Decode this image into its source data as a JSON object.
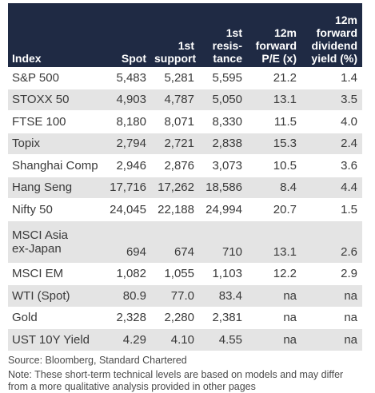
{
  "headers": {
    "index": [
      "Index"
    ],
    "spot": [
      "Spot"
    ],
    "support": [
      "1st",
      "support"
    ],
    "resistance": [
      "1st",
      "resis-",
      "tance"
    ],
    "pe": [
      "12m",
      "forward",
      "P/E (x)"
    ],
    "dividend": [
      "12m",
      "forward",
      "dividend",
      "yield (%)"
    ]
  },
  "rows": [
    {
      "index": "S&P 500",
      "spot": "5,483",
      "support": "5,281",
      "resistance": "5,595",
      "pe": "21.2",
      "dividend": "1.4"
    },
    {
      "index": "STOXX 50",
      "spot": "4,903",
      "support": "4,787",
      "resistance": "5,050",
      "pe": "13.1",
      "dividend": "3.5"
    },
    {
      "index": "FTSE 100",
      "spot": "8,180",
      "support": "8,071",
      "resistance": "8,330",
      "pe": "11.5",
      "dividend": "4.0"
    },
    {
      "index": "Topix",
      "spot": "2,794",
      "support": "2,721",
      "resistance": "2,838",
      "pe": "15.3",
      "dividend": "2.4"
    },
    {
      "index": "Shanghai Comp",
      "spot": "2,946",
      "support": "2,876",
      "resistance": "3,073",
      "pe": "10.5",
      "dividend": "3.6"
    },
    {
      "index": "Hang Seng",
      "spot": "17,716",
      "support": "17,262",
      "resistance": "18,586",
      "pe": "8.4",
      "dividend": "4.4"
    },
    {
      "index": "Nifty 50",
      "spot": "24,045",
      "support": "22,188",
      "resistance": "24,994",
      "pe": "20.7",
      "dividend": "1.5"
    },
    {
      "index": [
        "MSCI Asia",
        "ex-Japan"
      ],
      "spot": "694",
      "support": "674",
      "resistance": "710",
      "pe": "13.1",
      "dividend": "2.6"
    },
    {
      "index": "MSCI EM",
      "spot": "1,082",
      "support": "1,055",
      "resistance": "1,103",
      "pe": "12.2",
      "dividend": "2.9"
    },
    {
      "index": "WTI (Spot)",
      "spot": "80.9",
      "support": "77.0",
      "resistance": "83.4",
      "pe": "na",
      "dividend": "na"
    },
    {
      "index": "Gold",
      "spot": "2,328",
      "support": "2,280",
      "resistance": "2,381",
      "pe": "na",
      "dividend": "na"
    },
    {
      "index": "UST 10Y Yield",
      "spot": "4.29",
      "support": "4.10",
      "resistance": "4.55",
      "pe": "na",
      "dividend": "na"
    }
  ],
  "source": "Source: Bloomberg, Standard Chartered",
  "note": "Note: These short-term technical levels are based on models and may differ from a more qualitative analysis provided in other pages",
  "colors": {
    "header_bg": "#1f2a44",
    "stripe": "#e4e4e4"
  }
}
